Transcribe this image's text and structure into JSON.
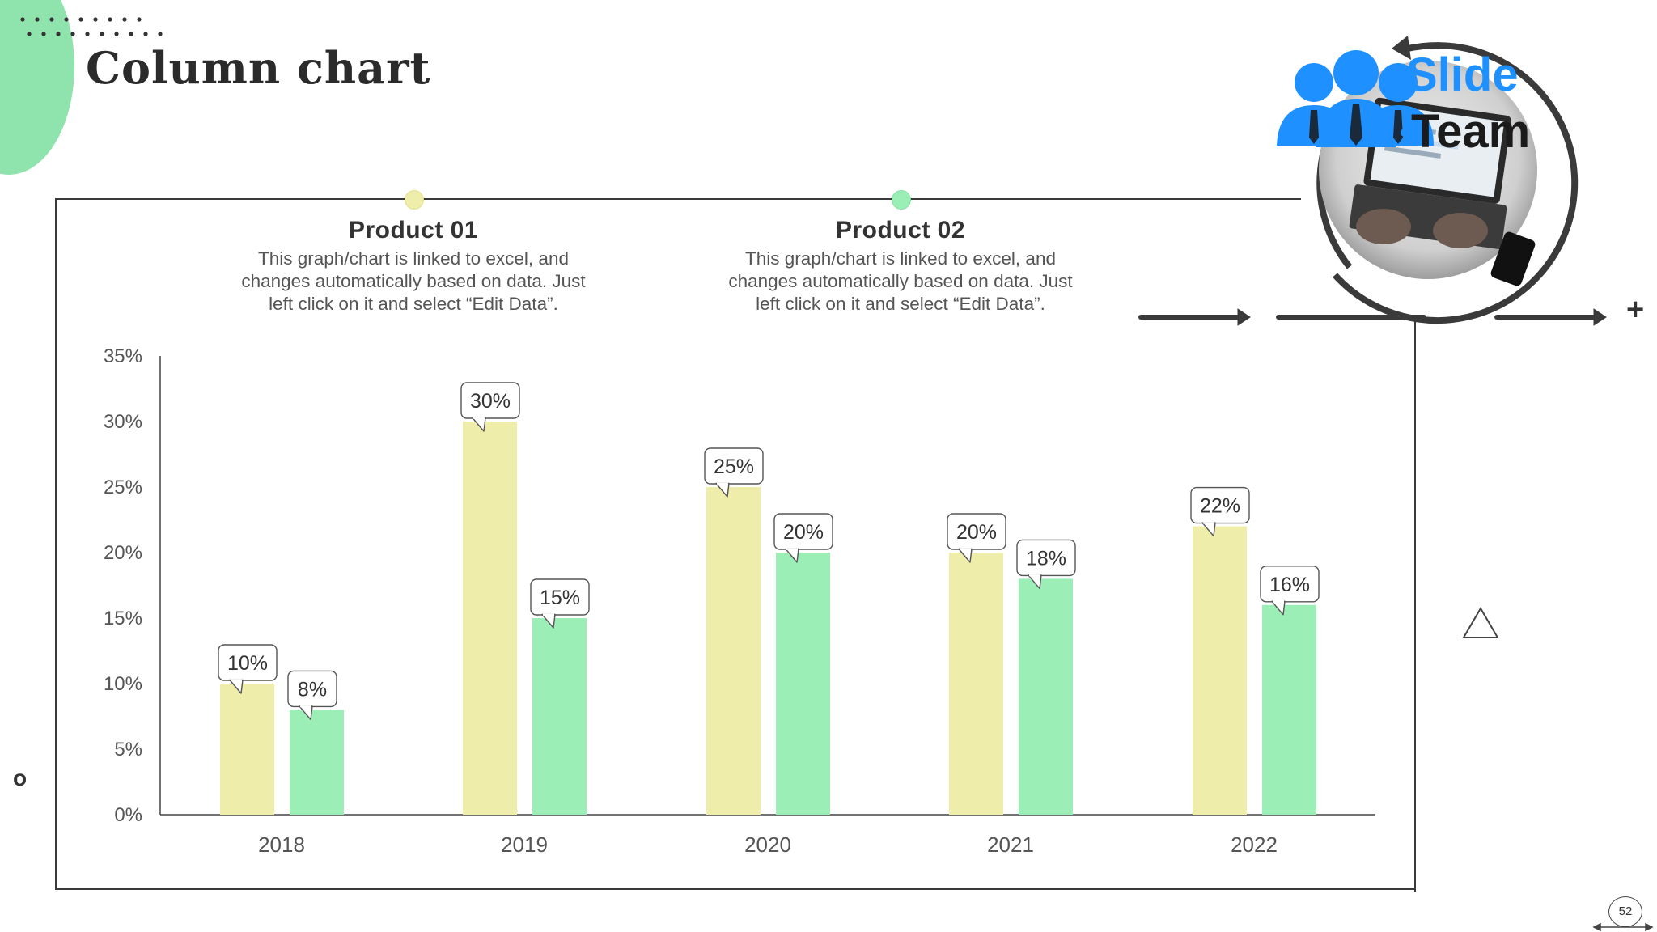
{
  "slide": {
    "title": "Column chart",
    "page_number": "52",
    "decor_plus": "+",
    "decor_o": "o"
  },
  "legend": [
    {
      "heading": "Product 01",
      "description_lines": [
        "This graph/chart is linked to excel, and",
        "changes automatically based on data. Just",
        "left click on it and select “Edit Data”."
      ],
      "color": "#eeeeaa"
    },
    {
      "heading": "Product 02",
      "description_lines": [
        "This graph/chart is linked to excel, and",
        "changes automatically based on data. Just",
        "left click on it and select “Edit Data”."
      ],
      "color": "#9aeeb6"
    }
  ],
  "logo": {
    "word1": "Slide",
    "word2": "Team",
    "icon": "people-laptop-logo-icon"
  },
  "colors": {
    "accent_green": "#8fe3ad",
    "product1": "#eeeeaa",
    "product2": "#9aeeb6",
    "logo_blue": "#1e90ff",
    "dark": "#3a3a3a"
  },
  "chart_data": {
    "type": "bar",
    "title": "Column chart",
    "xlabel": "",
    "ylabel": "",
    "ylim": [
      0,
      35
    ],
    "y_ticks": [
      "0%",
      "5%",
      "10%",
      "15%",
      "20%",
      "25%",
      "30%",
      "35%"
    ],
    "y_tick_values": [
      0,
      5,
      10,
      15,
      20,
      25,
      30,
      35
    ],
    "categories": [
      "2018",
      "2019",
      "2020",
      "2021",
      "2022"
    ],
    "series": [
      {
        "name": "Product 01",
        "values": [
          10,
          30,
          25,
          20,
          22
        ],
        "labels": [
          "10%",
          "30%",
          "25%",
          "20%",
          "22%"
        ]
      },
      {
        "name": "Product 02",
        "values": [
          8,
          15,
          20,
          18,
          16
        ],
        "labels": [
          "8%",
          "15%",
          "20%",
          "18%",
          "16%"
        ]
      }
    ],
    "grid": false,
    "legend": "top"
  }
}
